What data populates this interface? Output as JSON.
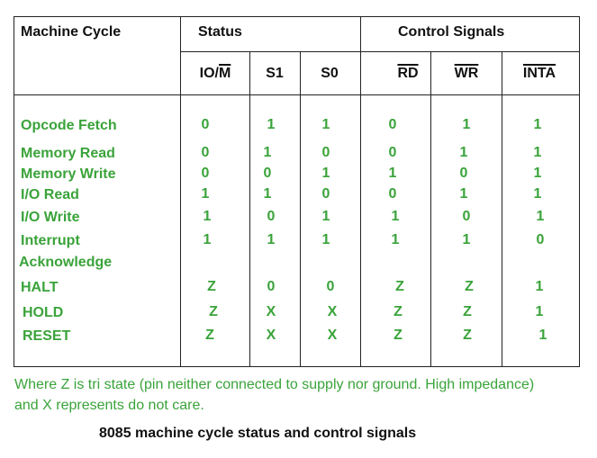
{
  "header": {
    "machine_cycle": "Machine Cycle",
    "status": "Status",
    "control_signals": "Control Signals"
  },
  "columns": {
    "io_m_io": "IO/",
    "io_m_m": "M",
    "s1": "S1",
    "s0": "S0",
    "rd": "RD",
    "wr": "WR",
    "inta": "INTA"
  },
  "rows": [
    {
      "cycle": "Opcode Fetch",
      "io_m": "0",
      "s1": "1",
      "s0": "1",
      "rd": "0",
      "wr": "1",
      "inta": "1"
    },
    {
      "cycle": "Memory Read",
      "io_m": "0",
      "s1": "1",
      "s0": "0",
      "rd": "0",
      "wr": "1",
      "inta": "1"
    },
    {
      "cycle": "Memory Write",
      "io_m": "0",
      "s1": "0",
      "s0": "1",
      "rd": "1",
      "wr": "0",
      "inta": "1"
    },
    {
      "cycle": "I/O Read",
      "io_m": "1",
      "s1": "1",
      "s0": "0",
      "rd": "0",
      "wr": "1",
      "inta": "1"
    },
    {
      "cycle": "I/O Write",
      "io_m": "1",
      "s1": "0",
      "s0": "1",
      "rd": "1",
      "wr": "0",
      "inta": "1"
    },
    {
      "cycle": "Interrupt",
      "cycle2": "Acknowledge",
      "io_m": "1",
      "s1": "1",
      "s0": "1",
      "rd": "1",
      "wr": "1",
      "inta": "0"
    },
    {
      "cycle": "HALT",
      "io_m": "Z",
      "s1": "0",
      "s0": "0",
      "rd": "Z",
      "wr": "Z",
      "inta": "1"
    },
    {
      "cycle": "HOLD",
      "io_m": "Z",
      "s1": "X",
      "s0": "X",
      "rd": "Z",
      "wr": "Z",
      "inta": "1"
    },
    {
      "cycle": "RESET",
      "io_m": "Z",
      "s1": "X",
      "s0": "X",
      "rd": "Z",
      "wr": "Z",
      "inta": "1"
    }
  ],
  "note": {
    "line1": "Where Z is tri state (pin neither connected to supply nor ground. High impedance)",
    "line2": "and X represents do not care."
  },
  "caption": "8085 machine cycle status and control signals"
}
